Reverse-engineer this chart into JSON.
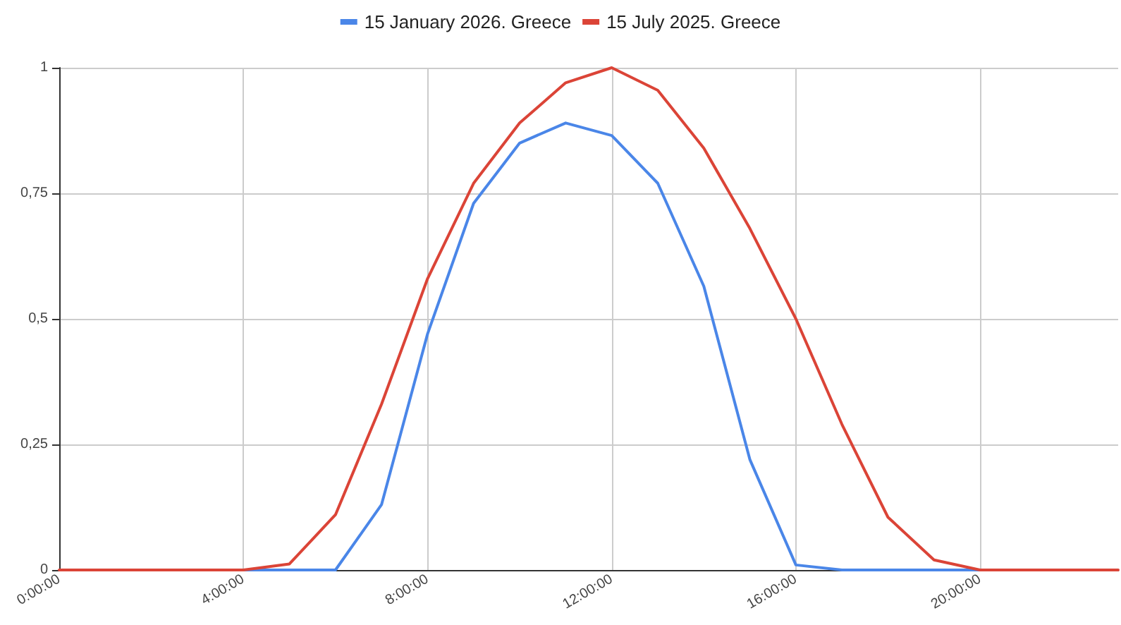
{
  "chart_data": {
    "type": "line",
    "x": [
      0,
      1,
      2,
      3,
      4,
      5,
      6,
      7,
      8,
      9,
      10,
      11,
      12,
      13,
      14,
      15,
      16,
      17,
      18,
      19,
      20,
      21,
      22,
      23
    ],
    "series": [
      {
        "name": "15 January 2026. Greece",
        "color": "#4a86e8",
        "values": [
          null,
          null,
          null,
          0,
          0,
          0,
          0,
          0.13,
          0.47,
          0.73,
          0.85,
          0.89,
          0.865,
          0.77,
          0.565,
          0.22,
          0.01,
          0,
          0,
          0,
          0,
          0,
          null,
          null
        ]
      },
      {
        "name": "15 July 2025. Greece",
        "color": "#db4437",
        "values": [
          0,
          0,
          0,
          0,
          0,
          0.012,
          0.11,
          0.33,
          0.58,
          0.77,
          0.89,
          0.97,
          1,
          0.955,
          0.84,
          0.68,
          0.5,
          0.29,
          0.105,
          0.02,
          0,
          0,
          0,
          0
        ]
      }
    ],
    "xlim": [
      0,
      23
    ],
    "xticks": [
      {
        "value": 0,
        "label": "0:00:00"
      },
      {
        "value": 4,
        "label": "4:00:00"
      },
      {
        "value": 8,
        "label": "8:00:00"
      },
      {
        "value": 12,
        "label": "12:00:00"
      },
      {
        "value": 16,
        "label": "16:00:00"
      },
      {
        "value": 20,
        "label": "20:00:00"
      }
    ],
    "ylim": [
      0,
      1
    ],
    "yticks": [
      0,
      {
        "value": 0.25,
        "label": "0,25"
      },
      {
        "value": 0.5,
        "label": "0,5"
      },
      {
        "value": 0.75,
        "label": "0,75"
      },
      1
    ],
    "grid": true,
    "legend": "top",
    "marker": "none",
    "line_style": "solid"
  }
}
